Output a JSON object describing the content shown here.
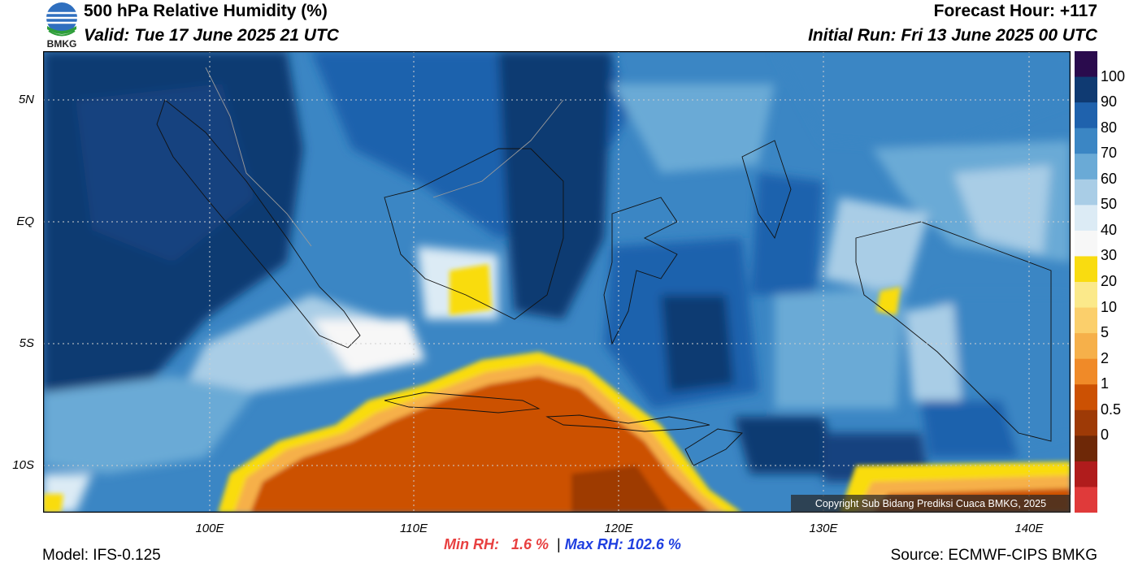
{
  "header": {
    "title": "500 hPa Relative Humidity (%)",
    "valid": "Valid: Tue 17 June 2025 21 UTC",
    "forecast_hour": "Forecast Hour: +117",
    "initial_run": "Initial Run: Fri 13 June 2025 00 UTC",
    "logo_text": "BMKG"
  },
  "map": {
    "lat_labels": [
      "5N",
      "EQ",
      "5S",
      "10S"
    ],
    "lon_labels": [
      "100E",
      "110E",
      "120E",
      "130E",
      "140E"
    ],
    "copyright": "Copyright Sub Bidang Prediksi Cuaca BMKG, 2025"
  },
  "colorbar": {
    "labels": [
      "100",
      "90",
      "80",
      "70",
      "60",
      "50",
      "40",
      "30",
      "20",
      "10",
      "5",
      "2",
      "1",
      "0.5",
      "0"
    ],
    "colors": [
      "#2a0b4d",
      "#0f3a72",
      "#1f62ad",
      "#3b86c4",
      "#6aaad6",
      "#a9cde6",
      "#dcebf5",
      "#f7f7f7",
      "#f9dc10",
      "#fbe98a",
      "#fbcf6b",
      "#f6b04a",
      "#f08a28",
      "#cc5103",
      "#9e3a06",
      "#6e2807",
      "#b01c1c",
      "#e03a3a"
    ]
  },
  "footer": {
    "min_label": "Min RH:",
    "min_value": "1.6 %",
    "separator": "|",
    "max_label": "Max RH:",
    "max_value": "102.6 %",
    "model": "Model: IFS-0.125",
    "source": "Source: ECMWF-CIPS BMKG"
  }
}
